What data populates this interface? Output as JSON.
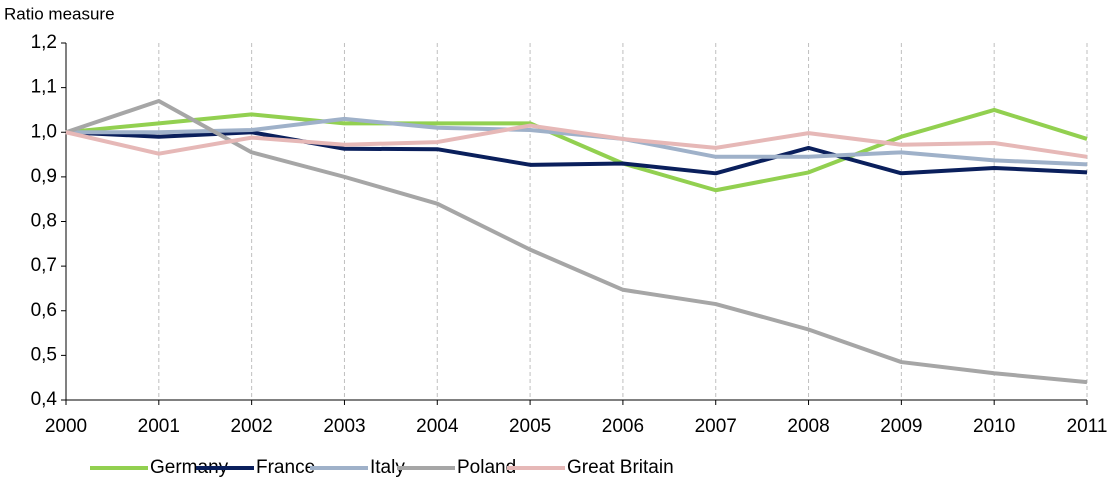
{
  "chart_data": {
    "type": "line",
    "y_label": "Ratio measure",
    "x": [
      2000,
      2001,
      2002,
      2003,
      2004,
      2005,
      2006,
      2007,
      2008,
      2009,
      2010,
      2011
    ],
    "xlim": [
      2000,
      2011
    ],
    "xticks": [
      2000,
      2001,
      2002,
      2003,
      2004,
      2005,
      2006,
      2007,
      2008,
      2009,
      2010,
      2011
    ],
    "ylim": [
      0.4,
      1.2
    ],
    "yticks": [
      {
        "value": 0.4,
        "label": "0,4"
      },
      {
        "value": 0.5,
        "label": "0,5"
      },
      {
        "value": 0.6,
        "label": "0,6"
      },
      {
        "value": 0.7,
        "label": "0,7"
      },
      {
        "value": 0.8,
        "label": "0,8"
      },
      {
        "value": 0.9,
        "label": "0,9"
      },
      {
        "value": 1.0,
        "label": "1,0"
      },
      {
        "value": 1.1,
        "label": "1,1"
      },
      {
        "value": 1.2,
        "label": "1,2"
      }
    ],
    "grid": "x",
    "legend": "bottom",
    "series": [
      {
        "name": "Germany",
        "color": "#92d050",
        "values": [
          1.0,
          1.02,
          1.04,
          1.02,
          1.02,
          1.02,
          0.93,
          0.87,
          0.91,
          0.99,
          1.05,
          0.985
        ]
      },
      {
        "name": "France",
        "color": "#0a1f5c",
        "values": [
          1.0,
          0.99,
          1.0,
          0.963,
          0.962,
          0.927,
          0.93,
          0.908,
          0.965,
          0.908,
          0.92,
          0.91
        ]
      },
      {
        "name": "Italy",
        "color": "#9fb1c9",
        "values": [
          1.0,
          1.0,
          1.005,
          1.03,
          1.01,
          1.005,
          0.985,
          0.945,
          0.945,
          0.955,
          0.937,
          0.928
        ]
      },
      {
        "name": "Poland",
        "color": "#a6a6a6",
        "values": [
          1.0,
          1.07,
          0.955,
          0.9,
          0.84,
          0.737,
          0.647,
          0.615,
          0.558,
          0.485,
          0.46,
          0.44
        ]
      },
      {
        "name": "Great Britain",
        "color": "#e6b8b7",
        "values": [
          1.0,
          0.952,
          0.988,
          0.972,
          0.978,
          1.015,
          0.985,
          0.965,
          0.998,
          0.972,
          0.976,
          0.945
        ]
      }
    ]
  }
}
